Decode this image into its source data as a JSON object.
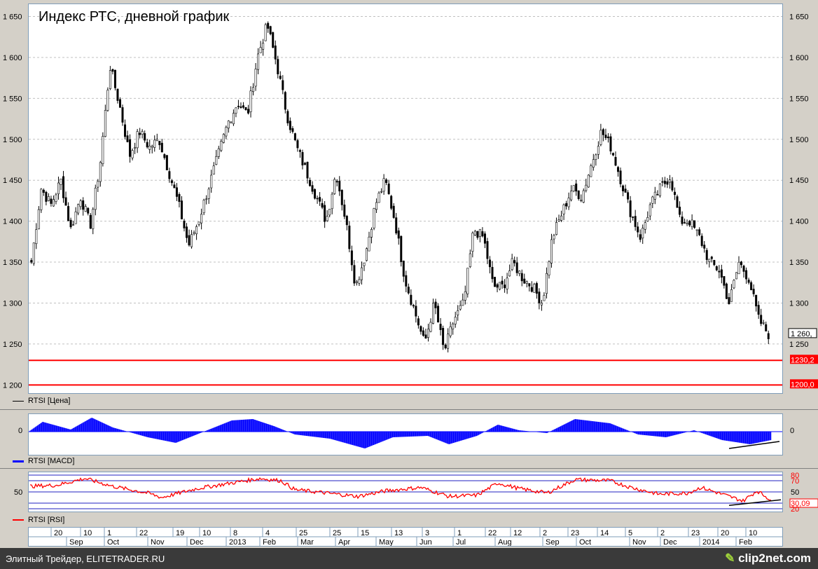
{
  "footer": {
    "left": "Элитный Трейдер, ELITETRADER.RU",
    "brand": "clip2net.com"
  },
  "legends": {
    "price": "RTSI [Цена]",
    "macd": "RTSI [MACD]",
    "rsi": "RTSI [RSI]"
  },
  "colors": {
    "candle": "#000000",
    "support": "#ff0000",
    "macd": "#0000ff",
    "rsi": "#ff0000",
    "rsi_bands": "#2020c0"
  },
  "chart_data": [
    {
      "type": "candlestick",
      "title": "Индекс РТС, дневной график",
      "ylim": [
        1190,
        1665
      ],
      "yticks": [
        1200,
        1250,
        1300,
        1350,
        1400,
        1450,
        1500,
        1550,
        1600,
        1650
      ],
      "ytick_labels": [
        "1 200",
        "1 250",
        "1 300",
        "1 350",
        "1 400",
        "1 450",
        "1 500",
        "1 550",
        "1 600",
        "1 650"
      ],
      "grid": true,
      "last_value_label": "1 260,",
      "horizontal_lines": [
        {
          "value": 1230,
          "label": "1230,2"
        },
        {
          "value": 1200,
          "label": "1200,0"
        }
      ],
      "close_path": [
        1350,
        1440,
        1420,
        1450,
        1390,
        1430,
        1395,
        1470,
        1590,
        1540,
        1480,
        1510,
        1490,
        1500,
        1460,
        1420,
        1370,
        1400,
        1440,
        1480,
        1520,
        1545,
        1530,
        1600,
        1640,
        1590,
        1530,
        1490,
        1460,
        1430,
        1400,
        1460,
        1400,
        1320,
        1360,
        1420,
        1450,
        1400,
        1330,
        1290,
        1250,
        1300,
        1240,
        1280,
        1300,
        1390,
        1380,
        1320,
        1320,
        1350,
        1330,
        1320,
        1300,
        1380,
        1410,
        1440,
        1430,
        1470,
        1510,
        1490,
        1450,
        1410,
        1380,
        1420,
        1440,
        1455,
        1400,
        1400,
        1380,
        1350,
        1340,
        1300,
        1350,
        1330,
        1280,
        1262
      ]
    },
    {
      "type": "bar",
      "name": "MACD",
      "yticks": [
        0
      ],
      "ytick_labels": [
        "0"
      ],
      "annotation": "rising trendline"
    },
    {
      "type": "line",
      "name": "RSI",
      "ylim": [
        15,
        85
      ],
      "band_levels": [
        80,
        70,
        50,
        30,
        20
      ],
      "band_labels": [
        "80",
        "70",
        "50",
        "30,09",
        "20"
      ],
      "left_tick_labels": [
        "50"
      ],
      "last_value_label": "30,09",
      "annotation": "rising trendline"
    }
  ],
  "date_axis": {
    "days": [
      "20",
      "10",
      "1",
      "22",
      "19",
      "10",
      "8",
      "4",
      "25",
      "25",
      "15",
      "13",
      "3",
      "1",
      "22",
      "12",
      "2",
      "23",
      "14",
      "5",
      "2",
      "23",
      "20",
      "10"
    ],
    "months": [
      "Sep",
      "Oct",
      "Nov",
      "Dec",
      "2013",
      "Feb",
      "Mar",
      "Apr",
      "May",
      "Jun",
      "Jul",
      "Aug",
      "Sep",
      "Oct",
      "Nov",
      "Dec",
      "2014",
      "Feb"
    ]
  }
}
